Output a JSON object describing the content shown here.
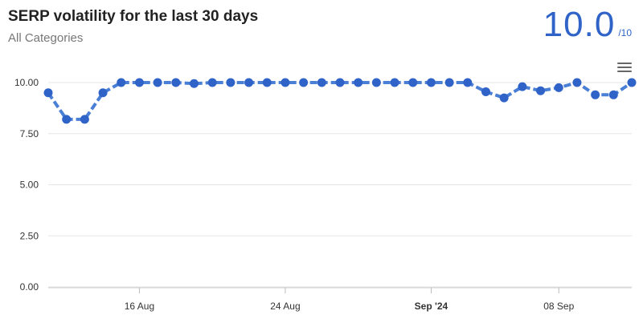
{
  "header": {
    "title": "SERP volatility for the last 30 days",
    "subtitle": "All Categories",
    "score": "10.0",
    "score_scale": "/10"
  },
  "colors": {
    "accent": "#2f63c8",
    "line": "#4a7fd6",
    "grid": "#e5e5e5"
  },
  "toolbar": {
    "menu_icon": "hamburger-menu-icon"
  },
  "chart_data": {
    "type": "line",
    "title": "SERP volatility for the last 30 days",
    "subtitle": "All Categories",
    "xlabel": "",
    "ylabel": "",
    "ylim": [
      0,
      10
    ],
    "y_ticks": [
      "0.00",
      "2.50",
      "5.00",
      "7.50",
      "10.00"
    ],
    "x_tick_labels": [
      {
        "label": "16 Aug",
        "index": 5,
        "bold": false
      },
      {
        "label": "24 Aug",
        "index": 13,
        "bold": false
      },
      {
        "label": "Sep '24",
        "index": 21,
        "bold": true
      },
      {
        "label": "08 Sep",
        "index": 28,
        "bold": false
      }
    ],
    "grid": true,
    "legend": "none",
    "series": [
      {
        "values": [
          9.5,
          8.2,
          8.2,
          9.5,
          10.0,
          10.0,
          10.0,
          10.0,
          9.95,
          10.0,
          10.0,
          10.0,
          10.0,
          10.0,
          10.0,
          10.0,
          10.0,
          10.0,
          10.0,
          10.0,
          10.0,
          10.0,
          10.0,
          10.0,
          9.55,
          9.25,
          9.8,
          9.6,
          9.75,
          10.0,
          9.4,
          9.4,
          10.0
        ]
      }
    ]
  }
}
